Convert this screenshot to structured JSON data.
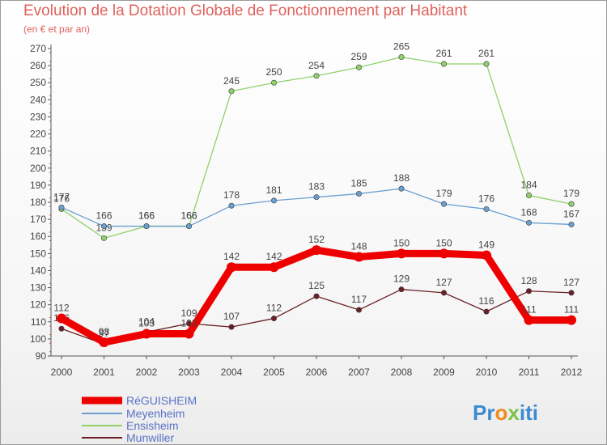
{
  "chart_data": {
    "type": "line",
    "title": "Evolution de la Dotation Globale de Fonctionnement par Habitant",
    "subtitle": "(en € et par an)",
    "xlabel": "",
    "ylabel": "",
    "ylim": [
      90,
      270
    ],
    "y_ticks": [
      90,
      100,
      110,
      120,
      130,
      140,
      150,
      160,
      170,
      180,
      190,
      200,
      210,
      220,
      230,
      240,
      250,
      260,
      270
    ],
    "categories": [
      "2000",
      "2001",
      "2002",
      "2003",
      "2004",
      "2005",
      "2006",
      "2007",
      "2008",
      "2009",
      "2010",
      "2011",
      "2012"
    ],
    "series": [
      {
        "name": "Munwiller",
        "color": "#6b1f24",
        "values": [
          106,
          97,
          104,
          109,
          107,
          112,
          125,
          117,
          129,
          127,
          116,
          128,
          127
        ],
        "labels": [
          "106",
          "97",
          "104",
          "109",
          "107",
          "112",
          "125",
          "117",
          "129",
          "127",
          "116",
          "128",
          "127"
        ]
      },
      {
        "name": "Ensisheim",
        "color": "#8fd16a",
        "values": [
          176,
          159,
          166,
          166,
          245,
          250,
          254,
          259,
          265,
          261,
          261,
          184,
          179
        ],
        "labels": [
          "176",
          "159",
          "166",
          "166",
          "245",
          "250",
          "254",
          "259",
          "265",
          "261",
          "261",
          "184",
          "179"
        ]
      },
      {
        "name": "Meyenheim",
        "color": "#6a9fd0",
        "values": [
          177,
          166,
          166,
          166,
          178,
          181,
          183,
          185,
          188,
          179,
          176,
          168,
          167
        ],
        "labels": [
          "177",
          "166",
          "166",
          "166",
          "178",
          "181",
          "183",
          "185",
          "188",
          "179",
          "176",
          "168",
          "167"
        ]
      },
      {
        "name": "RéGUISHEIM",
        "color": "#ee0000",
        "values": [
          112,
          98,
          103,
          103,
          142,
          142,
          152,
          148,
          150,
          150,
          149,
          111,
          111
        ],
        "labels": [
          "112",
          "98",
          "103",
          "103",
          "142",
          "142",
          "152",
          "148",
          "150",
          "150",
          "149",
          "111",
          "111"
        ]
      }
    ],
    "legend": [
      "RéGUISHEIM",
      "Meyenheim",
      "Ensisheim",
      "Munwiller"
    ],
    "legend_position": "bottom-left"
  },
  "branding": {
    "logo_text": "Proxiti",
    "logo_letters": [
      "P",
      "r",
      "o",
      "x",
      "i",
      "t",
      "i"
    ],
    "logo_colors": [
      "#3b8bd0",
      "#3b8bd0",
      "#f08a1c",
      "#7cc242",
      "#3b8bd0",
      "#3b8bd0",
      "#3b8bd0"
    ]
  }
}
